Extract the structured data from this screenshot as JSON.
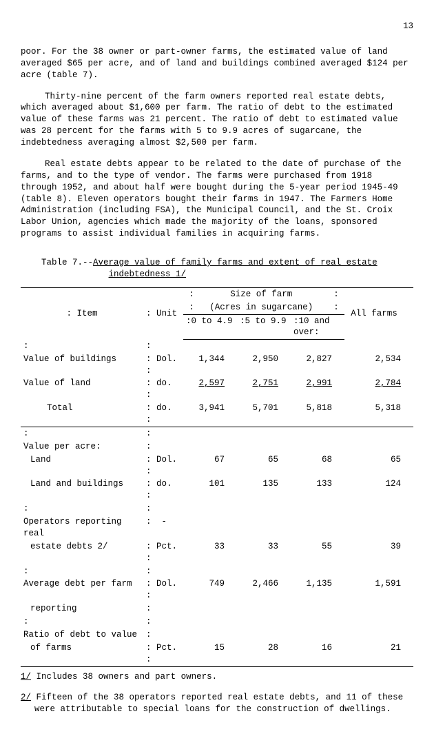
{
  "page_number": "13",
  "paragraphs": {
    "p1": "poor.  For the 38 owner or part-owner farms, the estimated value of land averaged $65 per acre, and of land and buildings combined averaged $124 per acre (table 7).",
    "p2": "Thirty-nine percent of the farm owners reported real estate debts, which averaged about $1,600 per farm.  The ratio of debt to the estimated value of these farms was 21 percent.  The ratio of debt to estimated value was 28 percent for the farms with 5 to 9.9 acres of sugarcane, the indebtedness averaging almost $2,500 per farm.",
    "p3": "Real estate debts appear to be related to the date of purchase of the farms, and to the type of vendor.  The farms were purchased from 1918 through 1952, and about half were bought during the 5-year period 1945-49 (table 8).  Eleven operators bought their farms in 1947.  The Farmers Home Administration (including FSA), the Municipal Council, and the St. Croix Labor Union, agencies which made the majority of the loans, sponsored programs to assist individual families in acquiring farms."
  },
  "table_title_prefix": "Table 7.--",
  "table_title_main": "Average value of family farms and extent of real estate",
  "table_title_line2": "indebtedness  1/",
  "headers": {
    "item": "Item",
    "unit": "Unit",
    "size_of_farm": "Size of farm",
    "acres": "(Acres in sugarcane)",
    "c1": "0 to 4.9",
    "c2": "5 to 9.9",
    "c3": "10 and over",
    "all": "All farms"
  },
  "rows": {
    "r1": {
      "label": "Value of buildings",
      "unit": "Dol.",
      "v": [
        "1,344",
        "2,950",
        "2,827",
        "2,534"
      ]
    },
    "r2": {
      "label": "Value of land",
      "unit": " do.",
      "v": [
        "2,597",
        "2,751",
        "2,991",
        "2,784"
      ]
    },
    "r3": {
      "label": "Total",
      "unit": " do.",
      "v": [
        "3,941",
        "5,701",
        "5,818",
        "5,318"
      ]
    },
    "r4hdr": "Value per acre:",
    "r4": {
      "label": "Land",
      "unit": "Dol.",
      "v": [
        "67",
        "65",
        "68",
        "65"
      ]
    },
    "r5": {
      "label": "Land and buildings",
      "unit": " do.",
      "v": [
        "101",
        "135",
        "133",
        "124"
      ]
    },
    "r6a": "Operators reporting real",
    "r6b": {
      "label": "estate debts 2/",
      "unit": "Pct.",
      "v": [
        "33",
        "33",
        "55",
        "39"
      ]
    },
    "r7a": "Average debt per farm",
    "r7b": {
      "label": "reporting",
      "unit": "Dol.",
      "v": [
        "749",
        "2,466",
        "1,135",
        "1,591"
      ]
    },
    "r8a": "Ratio of debt to value",
    "r8b": {
      "label": "of farms",
      "unit": "Pct.",
      "v": [
        "15",
        "28",
        "16",
        "21"
      ]
    }
  },
  "footnotes": {
    "f1": "1/ Includes 38 owners and part owners.",
    "f2": "2/ Fifteen of the 38 operators reported real estate debts, and 11 of these were attributable to special loans for the construction of dwellings."
  }
}
